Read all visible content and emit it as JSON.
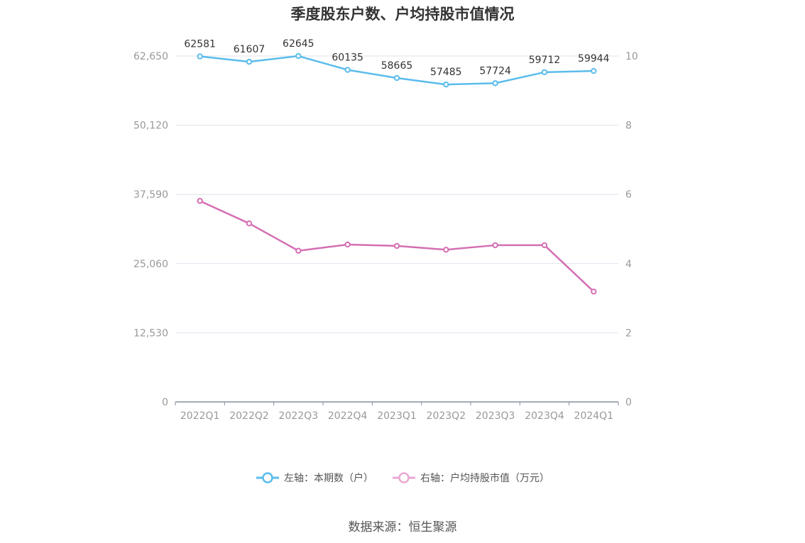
{
  "chart_data": {
    "type": "line",
    "title": "季度股东户数、户均持股市值情况",
    "categories": [
      "2022Q1",
      "2022Q2",
      "2022Q3",
      "2022Q4",
      "2023Q1",
      "2023Q2",
      "2023Q3",
      "2023Q4",
      "2024Q1"
    ],
    "left_axis": {
      "ticks": [
        "0",
        "12,530",
        "25,060",
        "37,590",
        "50,120",
        "62,650"
      ],
      "ylim": [
        0,
        62650
      ]
    },
    "right_axis": {
      "ticks": [
        "0",
        "2",
        "4",
        "6",
        "8",
        "10"
      ],
      "ylim": [
        0,
        10
      ]
    },
    "series": [
      {
        "name": "左轴：本期数（户）",
        "axis": "left",
        "color": "#5bbcec",
        "values": [
          62581,
          61607,
          62645,
          60135,
          58665,
          57485,
          57724,
          59712,
          59944
        ],
        "labels": [
          "62581",
          "61607",
          "62645",
          "60135",
          "58665",
          "57485",
          "57724",
          "59712",
          "59944"
        ]
      },
      {
        "name": "右轴：户均持股市值（万元）",
        "axis": "right",
        "color": "#d46fb3",
        "values": [
          5.81,
          5.16,
          4.37,
          4.55,
          4.51,
          4.4,
          4.53,
          4.53,
          3.19
        ]
      }
    ],
    "grid": true,
    "legend_position": "bottom"
  },
  "legend": {
    "left_label": "左轴：本期数（户）",
    "right_label": "右轴：户均持股市值（万元）",
    "left_color": "#5bbcec",
    "right_color": "#e9a9d4"
  },
  "source": "数据来源：恒生聚源"
}
